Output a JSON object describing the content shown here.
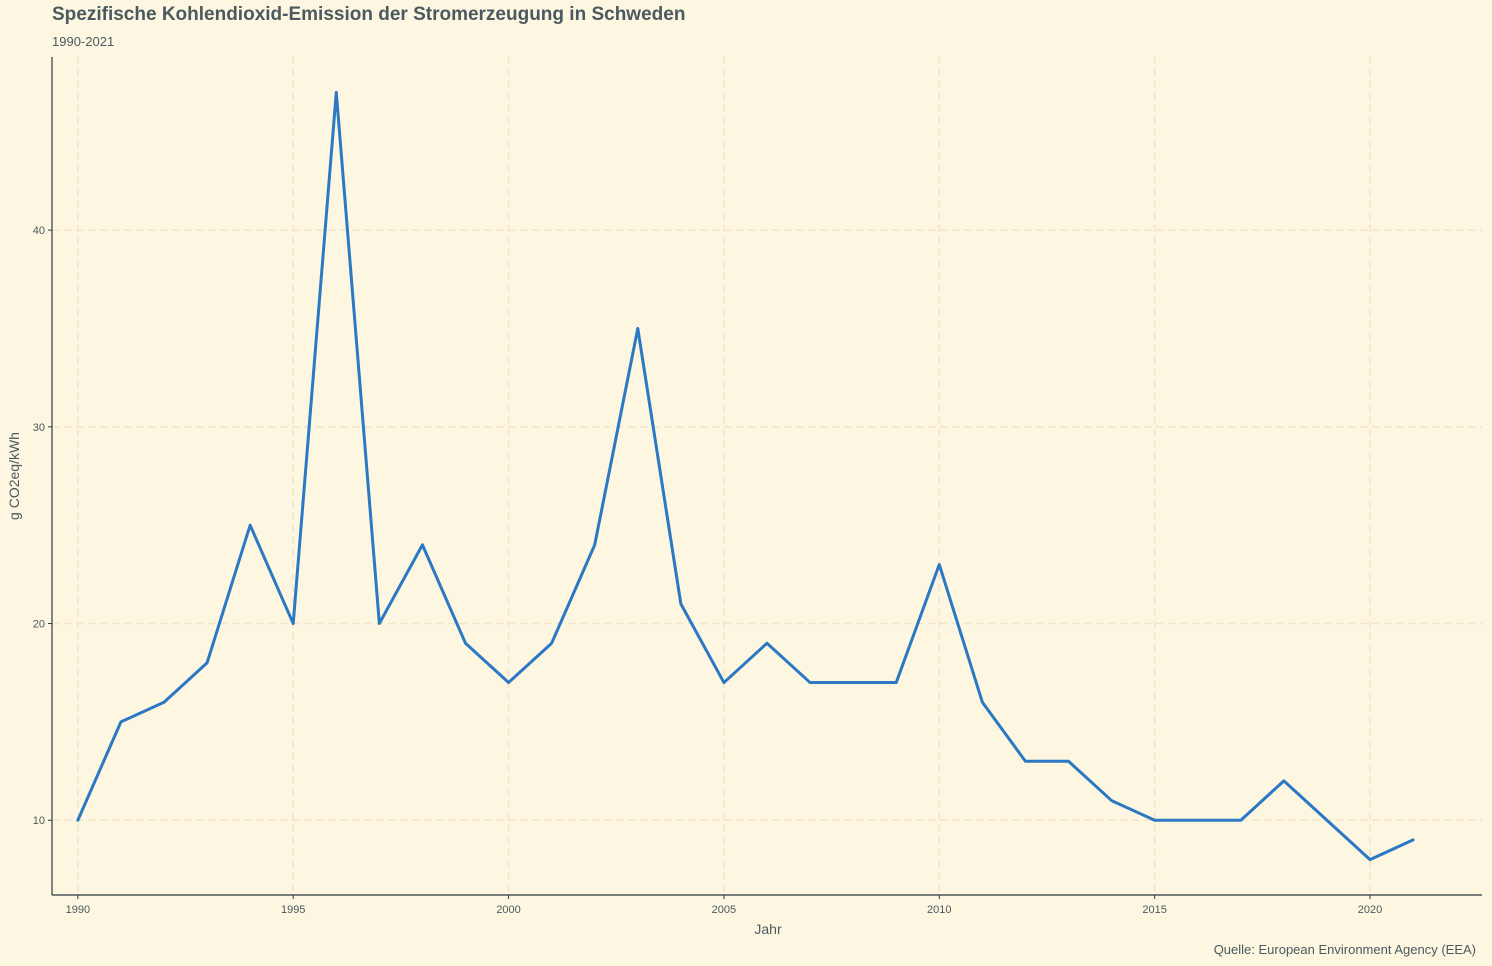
{
  "chart_data": {
    "type": "line",
    "title": "Spezifische Kohlendioxid-Emission der Stromerzeugung in Schweden",
    "subtitle": "1990-2021",
    "xlabel": "Jahr",
    "ylabel": "g CO2eq/kWh",
    "caption": "Quelle: European Environment Agency (EEA)",
    "x": [
      1990,
      1991,
      1992,
      1993,
      1994,
      1995,
      1996,
      1997,
      1998,
      1999,
      2000,
      2001,
      2002,
      2003,
      2004,
      2005,
      2006,
      2007,
      2008,
      2009,
      2010,
      2011,
      2012,
      2013,
      2014,
      2015,
      2016,
      2017,
      2018,
      2019,
      2020,
      2021
    ],
    "series": [
      {
        "values": [
          10,
          15,
          16,
          18,
          25,
          20,
          47,
          20,
          24,
          19,
          17,
          19,
          24,
          35,
          21,
          17,
          19,
          17,
          17,
          17,
          23,
          16,
          13,
          13,
          11,
          10,
          10,
          10,
          12,
          10,
          8,
          9
        ]
      }
    ],
    "xlim": [
      1989.4,
      2022.6
    ],
    "ylim": [
      6.2,
      48.8
    ],
    "xticks": [
      1990,
      1995,
      2000,
      2005,
      2010,
      2015,
      2020
    ],
    "yticks": [
      10,
      20,
      30,
      40
    ],
    "grid": true,
    "legend": "none",
    "line_color": "#2b78c5",
    "grid_color": "#f3e4c6",
    "axis_color": "#2e3b40"
  }
}
